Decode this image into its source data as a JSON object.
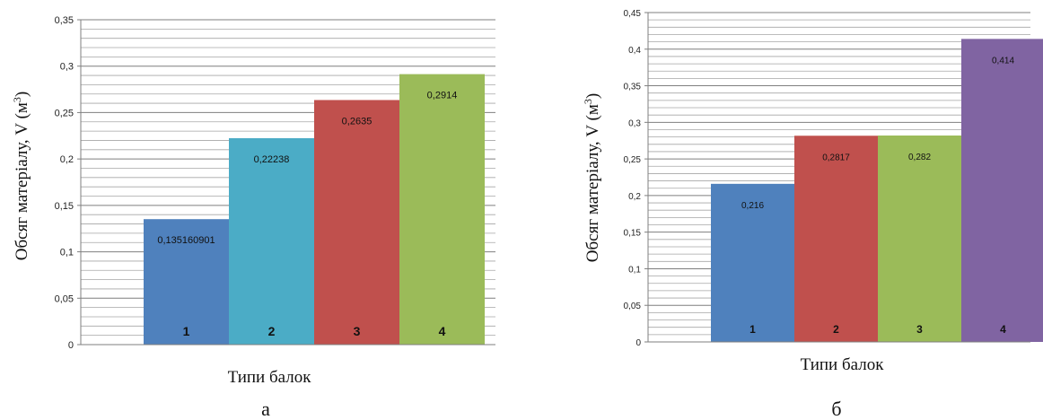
{
  "chart_data": [
    {
      "type": "bar",
      "panel_label": "а",
      "ylabel": "Обсяг матеріалу, V (м",
      "ylabel_sup": "3",
      "ylabel_close": ")",
      "xlabel": "Типи балок",
      "ylim": [
        0,
        0.35
      ],
      "y_ticks": [
        0,
        0.05,
        0.1,
        0.15,
        0.2,
        0.25,
        0.3,
        0.35
      ],
      "y_tick_labels": [
        "0",
        "0,05",
        "0,1",
        "0,15",
        "0,2",
        "0,25",
        "0,3",
        "0,35"
      ],
      "grid": true,
      "categories": [
        "1",
        "2",
        "3",
        "4"
      ],
      "values": [
        0.135160901,
        0.22238,
        0.2635,
        0.2914
      ],
      "data_labels": [
        "0,135160901",
        "0,22238",
        "0,2635",
        "0,2914"
      ],
      "colors": [
        "#4f81bd",
        "#4bacc6",
        "#c0504d",
        "#9bbb59"
      ]
    },
    {
      "type": "bar",
      "panel_label": "б",
      "ylabel": "Обсяг матеріалу, V (м",
      "ylabel_sup": "3",
      "ylabel_close": ")",
      "xlabel": "Типи балок",
      "ylim": [
        0,
        0.45
      ],
      "y_ticks": [
        0,
        0.05,
        0.1,
        0.15,
        0.2,
        0.25,
        0.3,
        0.35,
        0.4,
        0.45
      ],
      "y_tick_labels": [
        "0",
        "0,05",
        "0,1",
        "0,15",
        "0,2",
        "0,25",
        "0,3",
        "0,35",
        "0,4",
        "0,45"
      ],
      "grid": true,
      "categories": [
        "1",
        "2",
        "3",
        "4"
      ],
      "values": [
        0.216,
        0.2817,
        0.282,
        0.414
      ],
      "data_labels": [
        "0,216",
        "0,2817",
        "0,282",
        "0,414"
      ],
      "colors": [
        "#4f81bd",
        "#c0504d",
        "#9bbb59",
        "#8064a2"
      ]
    }
  ]
}
